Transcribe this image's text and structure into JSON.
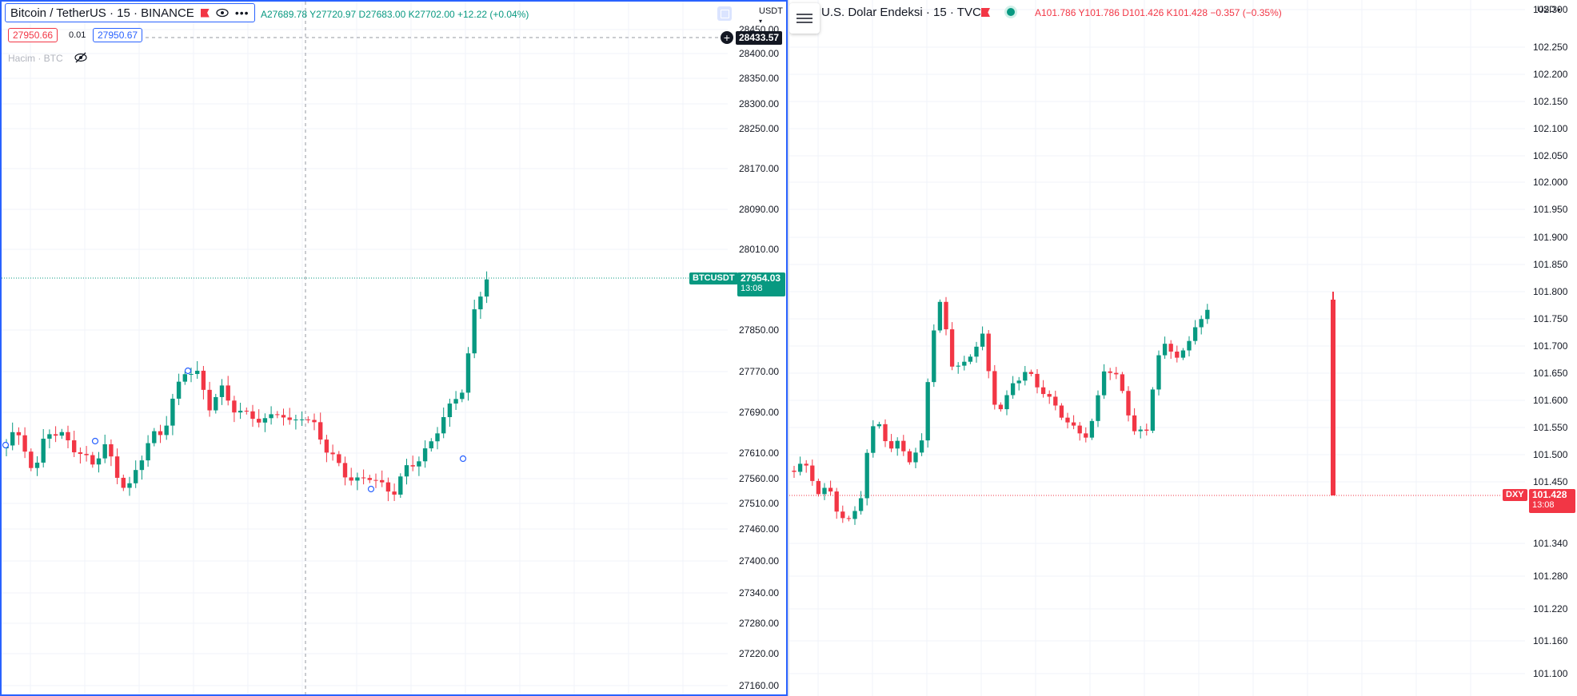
{
  "left": {
    "title": "Bitcoin / TetherUS · 15 · BINANCE",
    "ohlc": "A27689.78 Y27720.97 D27683.00 K27702.00 +12.22 (+0.04%)",
    "bid": "27950.66",
    "spread": "0.01",
    "ask": "27950.67",
    "volume_label": "Hacim · BTC",
    "currency": "USDT",
    "crosshair_price": "28433.57",
    "last_symbol": "BTCUSDT",
    "last_price": "27954.03",
    "countdown": "13:08",
    "colors": {
      "up": "#089981",
      "down": "#f23645",
      "accent": "#2962ff"
    },
    "axis_ticks": [
      "28450.00",
      "28400.00",
      "28350.00",
      "28300.00",
      "28250.00",
      "28170.00",
      "28090.00",
      "28010.00",
      "27850.00",
      "27770.00",
      "27690.00",
      "27610.00",
      "27560.00",
      "27510.00",
      "27460.00",
      "27400.00",
      "27340.00",
      "27280.00",
      "27220.00",
      "27160.00"
    ]
  },
  "right": {
    "title": "U.S. Dolar Endeksi · 15 · TVC",
    "ohlc_open": "A101.786",
    "ohlc_high": "Y101.786",
    "ohlc_low": "D101.426",
    "ohlc_close": "K101.428",
    "ohlc_change": "−0.357 (−0.35%)",
    "currency": "USD",
    "last_symbol": "DXY",
    "last_price": "101.428",
    "countdown": "13:08",
    "axis_ticks": [
      "102.300",
      "102.250",
      "102.200",
      "102.150",
      "102.100",
      "102.050",
      "102.000",
      "101.950",
      "101.900",
      "101.850",
      "101.800",
      "101.750",
      "101.700",
      "101.650",
      "101.600",
      "101.550",
      "101.500",
      "101.450",
      "101.340",
      "101.280",
      "101.220",
      "101.160",
      "101.100"
    ]
  }
}
